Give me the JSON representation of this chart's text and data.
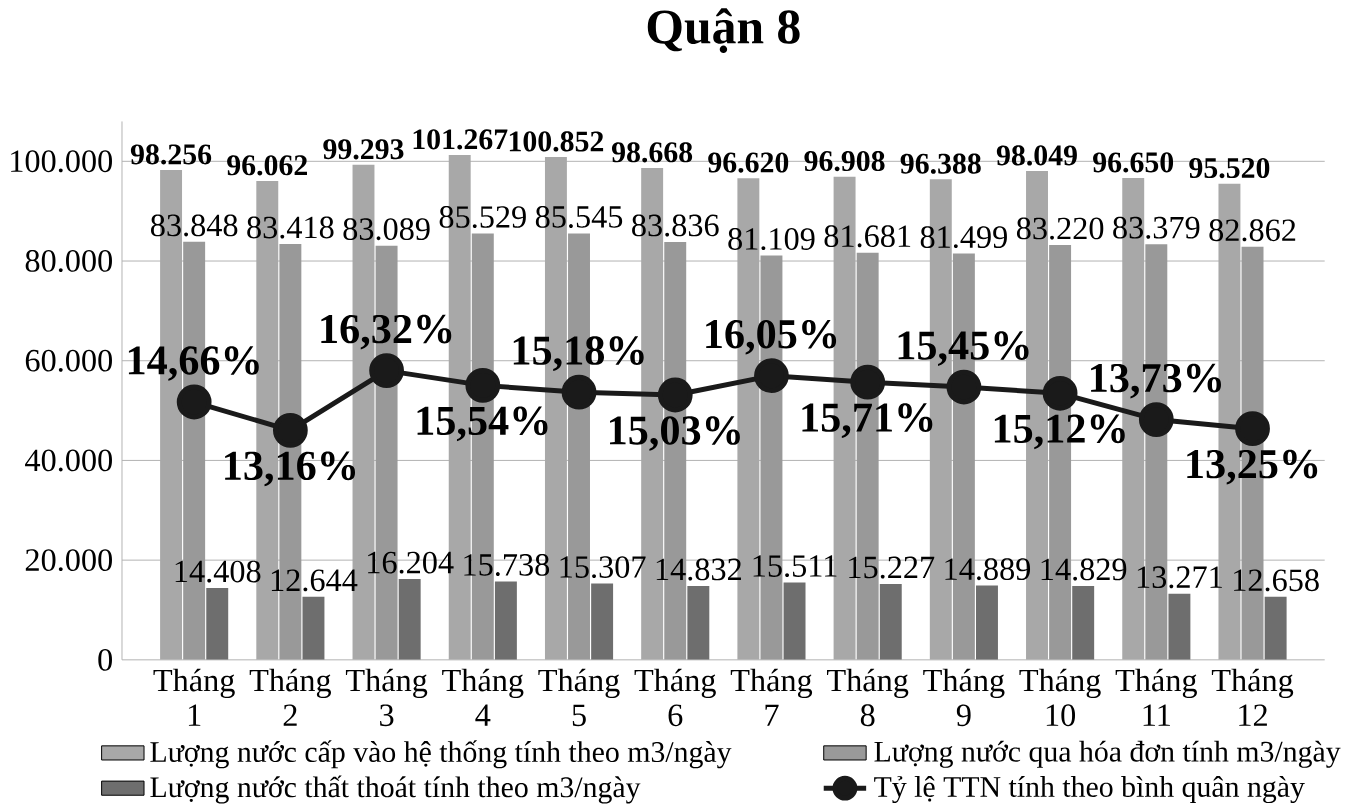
{
  "chart_data": {
    "type": "bar",
    "title": "Quận 8",
    "categories": [
      "Tháng 1",
      "Tháng 2",
      "Tháng 3",
      "Tháng 4",
      "Tháng 5",
      "Tháng 6",
      "Tháng 7",
      "Tháng 8",
      "Tháng 9",
      "Tháng 10",
      "Tháng 11",
      "Tháng 12"
    ],
    "series": [
      {
        "name": "Lượng nước cấp vào hệ thống tính theo m3/ngày",
        "color": "#a8a8a8",
        "values": [
          98256,
          96062,
          99293,
          101267,
          100852,
          98668,
          96620,
          96908,
          96388,
          98049,
          96650,
          95520
        ],
        "value_labels": [
          "98.256",
          "96.062",
          "99.293",
          "101.267",
          "100.852",
          "98.668",
          "96.620",
          "96.908",
          "96.388",
          "98.049",
          "96.650",
          "95.520"
        ]
      },
      {
        "name": "Lượng nước qua hóa đơn tính m3/ngày",
        "color": "#999999",
        "values": [
          83848,
          83418,
          83089,
          85529,
          85545,
          83836,
          81109,
          81681,
          81499,
          83220,
          83379,
          82862
        ],
        "value_labels": [
          "83.848",
          "83.418",
          "83.089",
          "85.529",
          "85.545",
          "83.836",
          "81.109",
          "81.681",
          "81.499",
          "83.220",
          "83.379",
          "82.862"
        ]
      },
      {
        "name": "Lượng nước thất thoát tính theo m3/ngày",
        "color": "#6e6e6e",
        "values": [
          14408,
          12644,
          16204,
          15738,
          15307,
          14832,
          15511,
          15227,
          14889,
          14829,
          13271,
          12658
        ],
        "value_labels": [
          "14.408",
          "12.644",
          "16.204",
          "15.738",
          "15.307",
          "14.832",
          "15.511",
          "15.227",
          "14.889",
          "14.829",
          "13.271",
          "12.658"
        ]
      },
      {
        "name": "Tỷ lệ TTN tính theo bình quân ngày",
        "type": "line",
        "axis": "y2",
        "color": "#1a1a1a",
        "marker": "circle",
        "values": [
          14.66,
          13.16,
          16.32,
          15.54,
          15.18,
          15.03,
          16.05,
          15.71,
          15.45,
          15.12,
          13.73,
          13.25
        ],
        "value_labels": [
          "14,66%",
          "13,16%",
          "16,32%",
          "15,54%",
          "15,18%",
          "15,03%",
          "16,05%",
          "15,71%",
          "15,45%",
          "15,12%",
          "13,73%",
          "13,25%"
        ]
      }
    ],
    "ylim": [
      0,
      108000
    ],
    "yticks": [
      {
        "value": 0,
        "label": "0"
      },
      {
        "value": 20000,
        "label": "20.000"
      },
      {
        "value": 40000,
        "label": "40.000"
      },
      {
        "value": 60000,
        "label": "60.000"
      },
      {
        "value": 80000,
        "label": "80.000"
      },
      {
        "value": 100000,
        "label": "100.000"
      }
    ],
    "grid": "y",
    "legend": "bottom"
  }
}
